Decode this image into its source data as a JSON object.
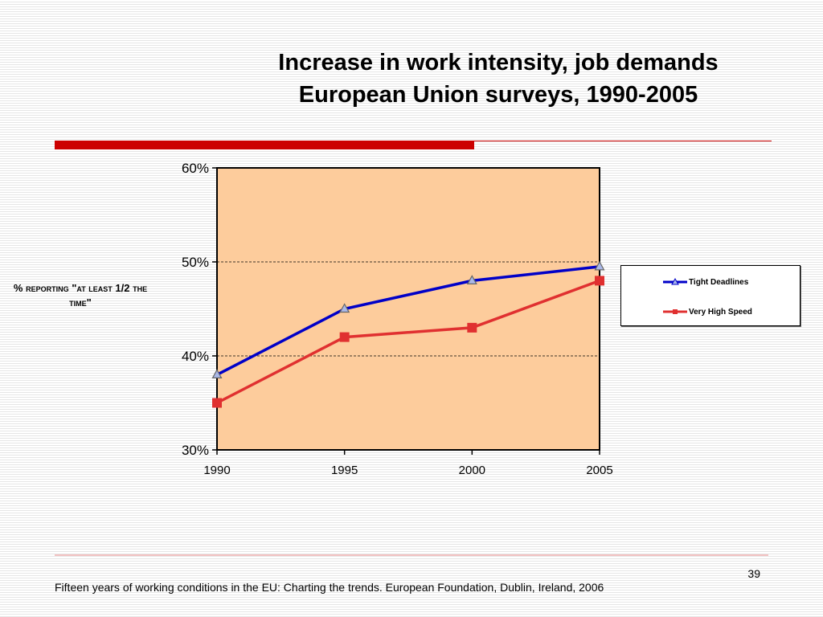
{
  "slide": {
    "title_line1": "Increase in work intensity, job demands",
    "title_line2": "European Union surveys, 1990-2005",
    "footer": "Fifteen years of working conditions in the EU: Charting the trends. European Foundation, Dublin, Ireland, 2006",
    "page_number": "39",
    "accent_color": "#cc0000"
  },
  "chart_data": {
    "type": "line",
    "title": "",
    "xlabel": "",
    "ylabel": "% reporting \"at least 1/2 the time\"",
    "x": [
      1990,
      1995,
      2000,
      2005
    ],
    "x_tick_labels": [
      "1990",
      "1995",
      "2000",
      "2005"
    ],
    "ylim": [
      0.3,
      0.6
    ],
    "y_tick_labels": [
      "60%",
      "50%",
      "40%",
      "30%"
    ],
    "y_ticks": [
      0.6,
      0.5,
      0.4,
      0.3
    ],
    "grid": "dashed horizontal at 50% and 40%",
    "plot_background": "#fdcc9c",
    "legend_position": "right",
    "series": [
      {
        "name": "Tight Deadlines",
        "values": [
          0.38,
          0.45,
          0.48,
          0.495
        ],
        "color": "#0000c8",
        "marker": "triangle"
      },
      {
        "name": "Very High Speed",
        "values": [
          0.35,
          0.42,
          0.43,
          0.48
        ],
        "color": "#e03030",
        "marker": "square"
      }
    ]
  }
}
